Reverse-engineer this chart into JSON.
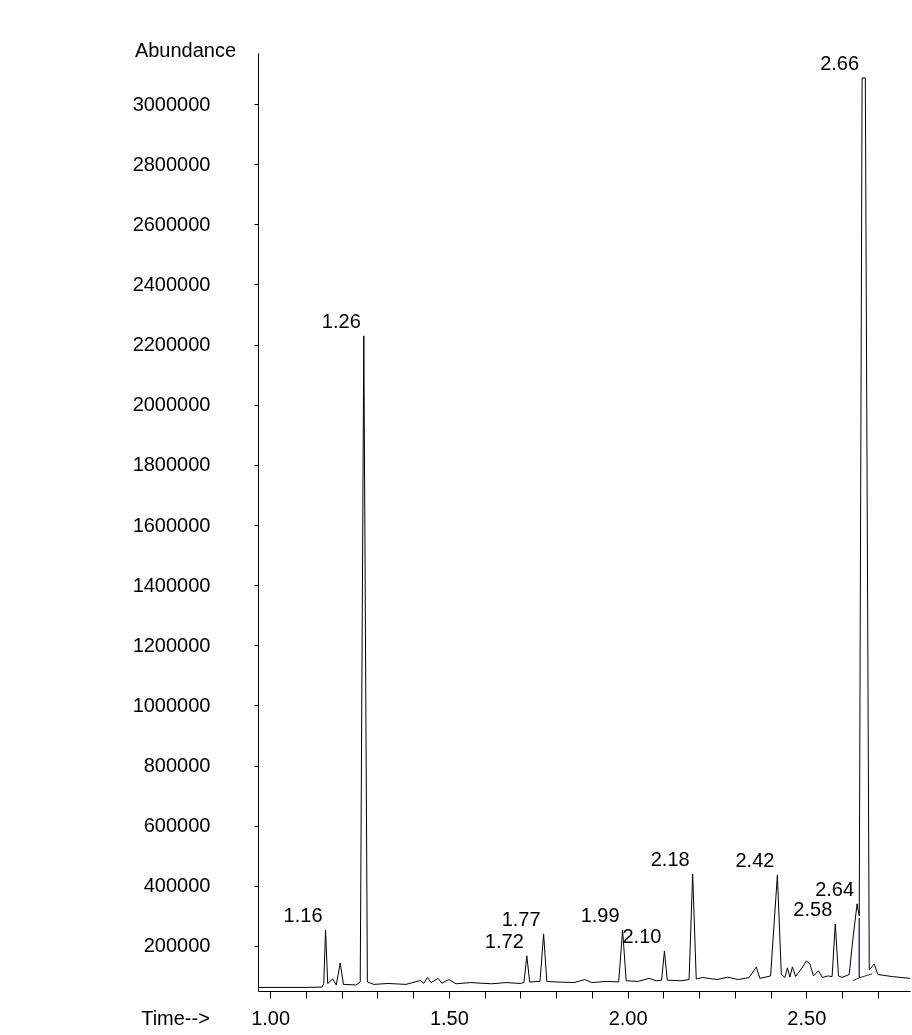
{
  "chart_data": {
    "type": "line",
    "xlabel": "Time-->",
    "ylabel": "Abundance",
    "xlim": [
      0.966,
      2.79
    ],
    "ylim": [
      50000,
      3170000
    ],
    "xticks": [
      {
        "value": 1,
        "label": "1.00"
      },
      {
        "value": 1.1,
        "label": null
      },
      {
        "value": 1.2,
        "label": null
      },
      {
        "value": 1.3,
        "label": null
      },
      {
        "value": 1.4,
        "label": null
      },
      {
        "value": 1.5,
        "label": "1.50"
      },
      {
        "value": 1.6,
        "label": null
      },
      {
        "value": 1.7,
        "label": null
      },
      {
        "value": 1.8,
        "label": null
      },
      {
        "value": 1.9,
        "label": null
      },
      {
        "value": 2,
        "label": "2.00"
      },
      {
        "value": 2.1,
        "label": null
      },
      {
        "value": 2.2,
        "label": null
      },
      {
        "value": 2.3,
        "label": null
      },
      {
        "value": 2.4,
        "label": null
      },
      {
        "value": 2.5,
        "label": "2.50"
      },
      {
        "value": 2.6,
        "label": null
      },
      {
        "value": 2.7,
        "label": null
      }
    ],
    "yticks": [
      200000,
      400000,
      600000,
      800000,
      1000000,
      1200000,
      1400000,
      1600000,
      1800000,
      2000000,
      2200000,
      2400000,
      2600000,
      2800000,
      3000000
    ],
    "series": [
      {
        "color": "#000000",
        "x": [
          0.966,
          1.1,
          1.145,
          1.15,
          1.155,
          1.161,
          1.175,
          1.185,
          1.196,
          1.205,
          1.24,
          1.252,
          1.262,
          1.272,
          1.29,
          1.33,
          1.38,
          1.42,
          1.43,
          1.44,
          1.45,
          1.47,
          1.48,
          1.5,
          1.52,
          1.56,
          1.62,
          1.66,
          1.7,
          1.71,
          1.718,
          1.726,
          1.755,
          1.765,
          1.774,
          1.8,
          1.85,
          1.88,
          1.9,
          1.94,
          1.975,
          1.986,
          1.996,
          2.03,
          2.06,
          2.08,
          2.095,
          2.103,
          2.111,
          2.15,
          2.172,
          2.182,
          2.192,
          2.21,
          2.25,
          2.28,
          2.31,
          2.34,
          2.36,
          2.37,
          2.4,
          2.419,
          2.43,
          2.44,
          2.447,
          2.454,
          2.461,
          2.47,
          2.49,
          2.5,
          2.51,
          2.52,
          2.534,
          2.545,
          2.56,
          2.572,
          2.581,
          2.59,
          2.6,
          2.62,
          2.63,
          2.642,
          2.648,
          2.656,
          2.665,
          2.676,
          2.69,
          2.7,
          2.74,
          2.79
        ],
        "values": [
          62000,
          62000,
          63000,
          75000,
          253000,
          75000,
          90000,
          70000,
          143000,
          72000,
          70000,
          80000,
          2229000,
          80000,
          72000,
          75000,
          72000,
          85000,
          76000,
          95000,
          78000,
          92000,
          76000,
          88000,
          74000,
          78000,
          74000,
          78000,
          75000,
          78000,
          167000,
          80000,
          82000,
          240000,
          82000,
          80000,
          78000,
          88000,
          78000,
          82000,
          80000,
          253000,
          84000,
          82000,
          92000,
          84000,
          86000,
          183000,
          86000,
          84000,
          88000,
          439000,
          90000,
          95000,
          88000,
          96000,
          88000,
          95000,
          130000,
          92000,
          100000,
          436000,
          105000,
          95000,
          127000,
          96000,
          130000,
          98000,
          130000,
          150000,
          140000,
          100000,
          117000,
          95000,
          100000,
          98000,
          273000,
          100000,
          95000,
          105000,
          220000,
          340000,
          300000,
          3087000,
          3087000,
          120000,
          140000,
          105000,
          98000,
          92000
        ]
      },
      {
        "color": "#22229e",
        "x": [
          2.63,
          2.648,
          2.648,
          2.648,
          2.684
        ],
        "values": [
          84000,
          94000,
          293000,
          94000,
          107000
        ]
      }
    ],
    "annotations": [
      {
        "text": "1.16",
        "x": 1.155,
        "y": 253000
      },
      {
        "text": "1.26",
        "x": 1.262,
        "y": 2229000
      },
      {
        "text": "1.72",
        "x": 1.718,
        "y": 167000
      },
      {
        "text": "1.77",
        "x": 1.765,
        "y": 240000
      },
      {
        "text": "1.99",
        "x": 1.986,
        "y": 253000
      },
      {
        "text": "2.10",
        "x": 2.103,
        "y": 183000
      },
      {
        "text": "2.18",
        "x": 2.182,
        "y": 439000
      },
      {
        "text": "2.42",
        "x": 2.419,
        "y": 436000
      },
      {
        "text": "2.58",
        "x": 2.581,
        "y": 273000
      },
      {
        "text": "2.64",
        "x": 2.642,
        "y": 340000
      },
      {
        "text": "2.66",
        "x": 2.656,
        "y": 3087000
      }
    ]
  }
}
